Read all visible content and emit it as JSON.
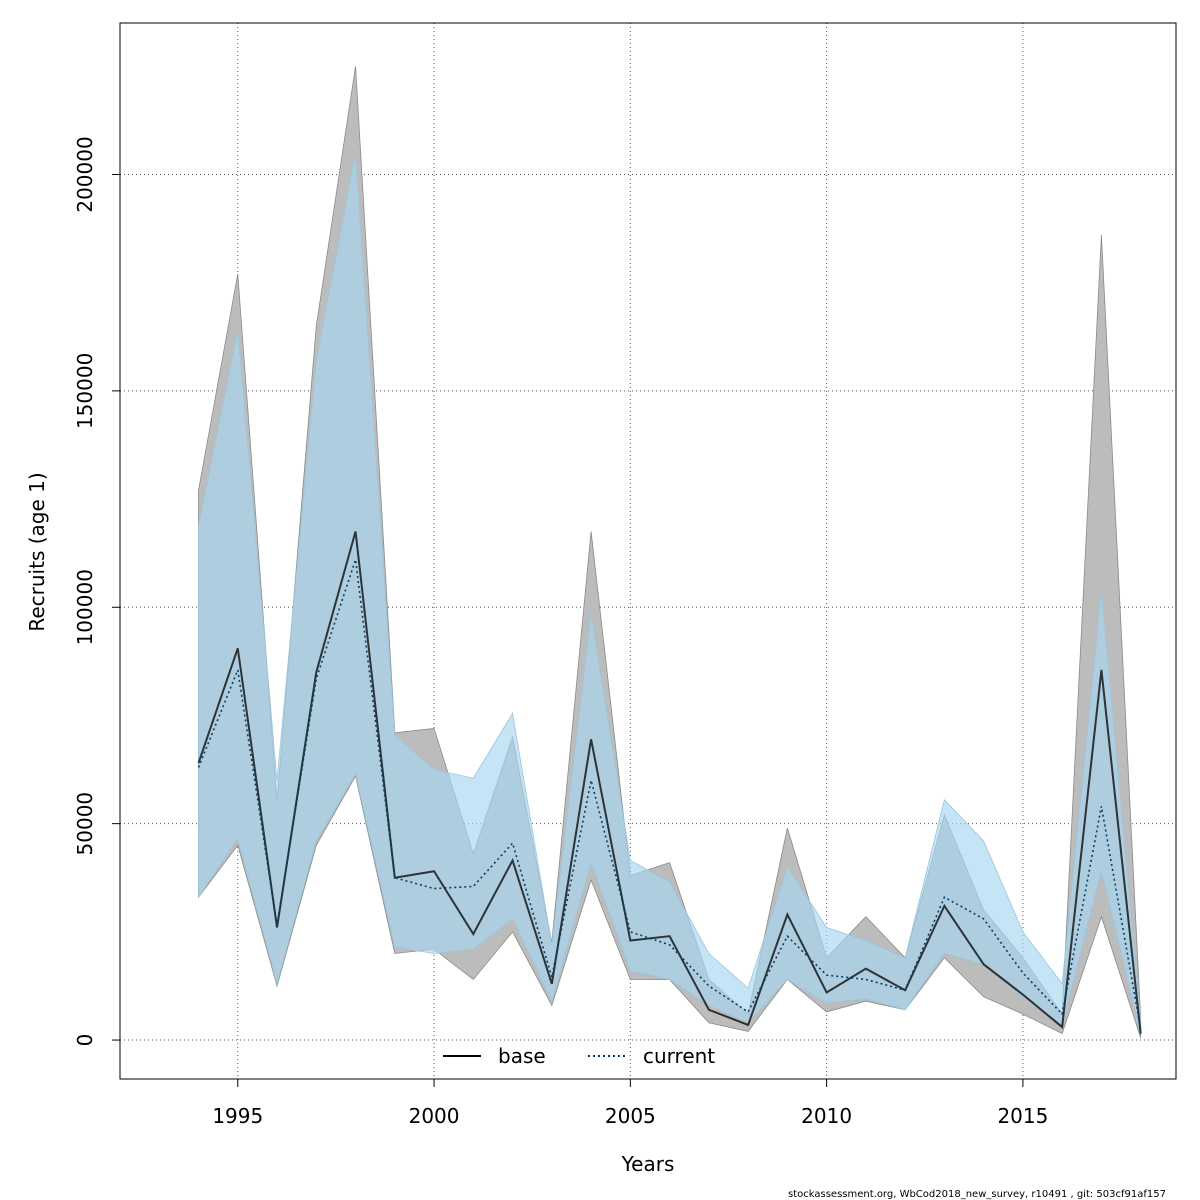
{
  "chart_data": {
    "type": "line",
    "xlabel": "Years",
    "ylabel": "Recruits (age 1)",
    "xlim": [
      1992.0,
      2018.9
    ],
    "ylim": [
      -9000,
      235000
    ],
    "x_ticks": [
      1995,
      2000,
      2005,
      2010,
      2015
    ],
    "y_ticks": [
      0,
      50000,
      100000,
      150000,
      200000
    ],
    "grid": true,
    "legend_position": "bottom-center",
    "x": [
      1994,
      1995,
      1996,
      1997,
      1998,
      1999,
      2000,
      2001,
      2002,
      2003,
      2004,
      2005,
      2006,
      2007,
      2008,
      2009,
      2010,
      2011,
      2012,
      2013,
      2014,
      2015,
      2016,
      2017,
      2018
    ],
    "series": [
      {
        "name": "base",
        "line_style": "solid",
        "line_color": "#000000",
        "band_color": "#bcbcbc",
        "values": [
          64000,
          90500,
          26000,
          85000,
          117500,
          37500,
          39000,
          24500,
          41500,
          13000,
          69500,
          23000,
          24000,
          7000,
          3500,
          29000,
          11000,
          16500,
          11500,
          31000,
          17500,
          10500,
          3000,
          85500,
          1500
        ],
        "lower": [
          33000,
          45000,
          12500,
          45000,
          61000,
          20000,
          21000,
          14000,
          25000,
          8000,
          37000,
          14000,
          14000,
          4000,
          2000,
          14000,
          6500,
          9000,
          7000,
          19000,
          10000,
          6000,
          1500,
          28500,
          500
        ],
        "upper": [
          127000,
          177000,
          55000,
          165000,
          225000,
          71000,
          72000,
          43000,
          70000,
          22500,
          117500,
          38000,
          41000,
          14000,
          6000,
          49000,
          19000,
          28500,
          19000,
          52000,
          30000,
          19000,
          6000,
          186000,
          5000
        ]
      },
      {
        "name": "current",
        "line_style": "dotted",
        "line_color": "#0d3b63",
        "band_color": "#a6d5f0",
        "values": [
          63000,
          85500,
          26500,
          83500,
          111000,
          37500,
          35000,
          35500,
          45500,
          14500,
          60000,
          25000,
          22000,
          12500,
          6500,
          24000,
          15000,
          14000,
          11500,
          33000,
          28000,
          15500,
          6000,
          54000,
          2500
        ],
        "lower": [
          33000,
          46500,
          13000,
          46000,
          61500,
          21500,
          20000,
          21000,
          28000,
          9000,
          41000,
          16000,
          14000,
          8000,
          4000,
          14000,
          8500,
          9500,
          7000,
          20000,
          17500,
          10000,
          3500,
          39000,
          1500
        ],
        "upper": [
          119000,
          164000,
          60000,
          157000,
          205000,
          70500,
          62500,
          60500,
          75500,
          22000,
          98500,
          41500,
          36500,
          20000,
          12000,
          40000,
          26000,
          23000,
          19000,
          55500,
          46000,
          25000,
          13000,
          104000,
          4500
        ]
      }
    ]
  },
  "footer": {
    "text": "stockassessment.org, WbCod2018_new_survey, r10491 , git: 503cf91af157"
  }
}
